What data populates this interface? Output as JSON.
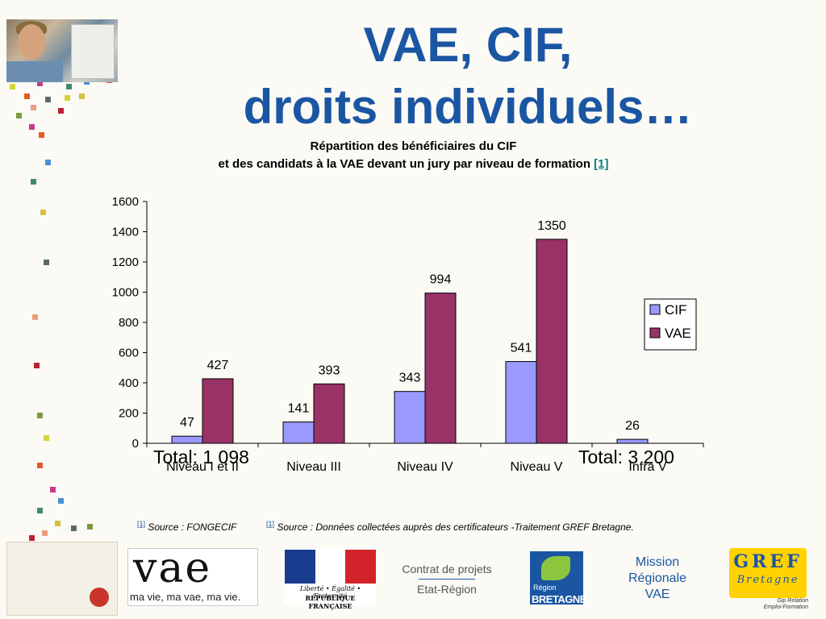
{
  "title": {
    "line1": "VAE, CIF,",
    "line2": "droits individuels…"
  },
  "subtitle": {
    "line1": "Répartition des bénéficiaires du CIF",
    "line2": "et des candidats à la VAE devant un jury  par niveau de formation",
    "ref": "[1]"
  },
  "chart_data": {
    "type": "bar",
    "categories": [
      "Niveau I et II",
      "Niveau III",
      "Niveau IV",
      "Niveau V",
      "Infra V"
    ],
    "series": [
      {
        "name": "CIF",
        "values": [
          47,
          141,
          343,
          541,
          26
        ],
        "color": "#9999ff"
      },
      {
        "name": "VAE",
        "values": [
          427,
          393,
          994,
          1350,
          null
        ],
        "color": "#993366"
      }
    ],
    "ylim": [
      0,
      1600
    ],
    "yticks": [
      "0",
      "200",
      "400",
      "600",
      "800",
      "1000",
      "1200",
      "1400",
      "1600"
    ],
    "grid": false,
    "legend": "right",
    "annotations": [
      "Total: 1 098",
      "Total: 3 200"
    ]
  },
  "footnotes": {
    "f1_ref": "[1]",
    "f1_text": "Source : FONGECIF",
    "f2_ref": "[1]",
    "f2_text": "Source : Données collectées auprès des certificateurs -Traitement GREF Bretagne."
  },
  "logos": {
    "vae_big": "vae",
    "vae_small": "ma vie, ma vae, ma vie.",
    "rf_motto": "Liberté • Égalité • Fraternité",
    "rf_name": "RÉPUBLIQUE FRANÇAISE",
    "contrat_line1": "Contrat de projets",
    "contrat_line2": "Etat-Région",
    "bretagne_region": "Région",
    "bretagne_name": "BRETAGNE",
    "mission_line1": "Mission",
    "mission_line2": "Régionale",
    "mission_line3": "VAE",
    "gref_line1": "GREF",
    "gref_line2": "Bretagne",
    "gref_sub1": "Gip Relation",
    "gref_sub2": "Emploi-Formation"
  }
}
